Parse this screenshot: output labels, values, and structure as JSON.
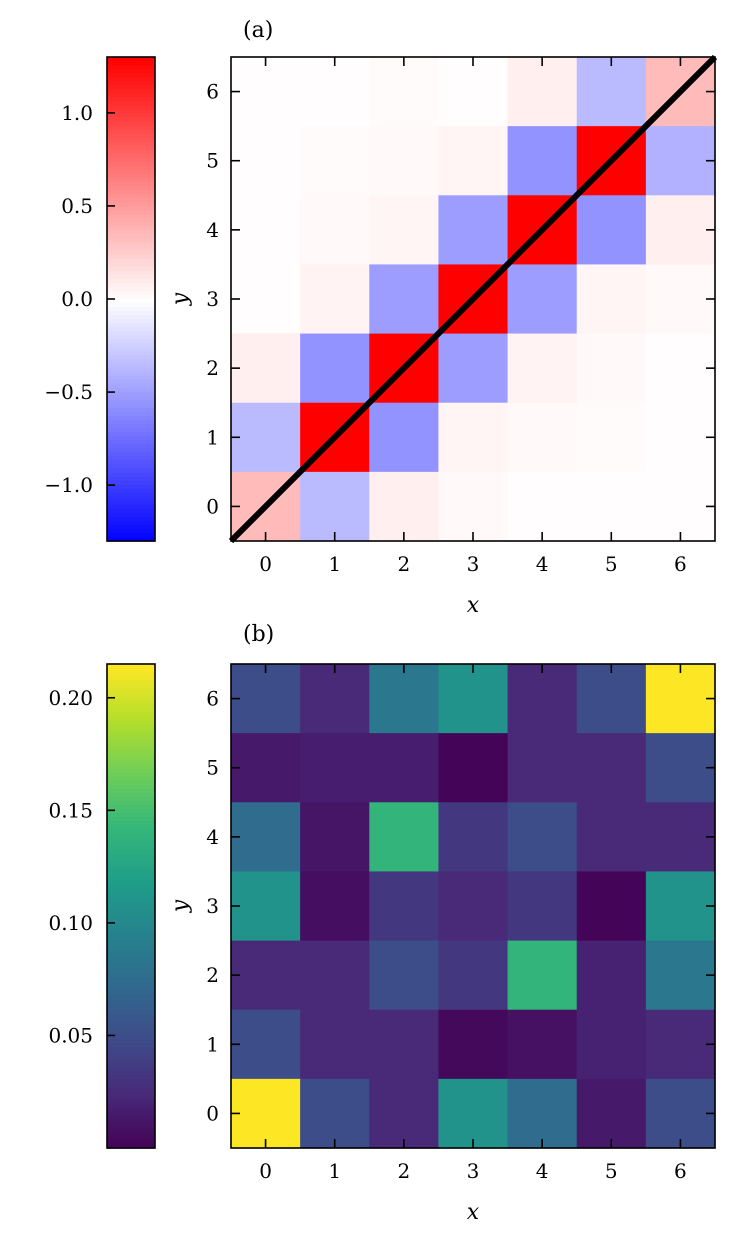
{
  "chart_data": [
    {
      "type": "heatmap",
      "panel_label": "(a)",
      "xlabel": "x",
      "ylabel": "y",
      "x_ticks": [
        "0",
        "1",
        "2",
        "3",
        "4",
        "5",
        "6"
      ],
      "y_ticks": [
        "0",
        "1",
        "2",
        "3",
        "4",
        "5",
        "6"
      ],
      "colormap": "bwr",
      "vmin": -1.3,
      "vmax": 1.3,
      "colorbar_ticks": [
        -1.0,
        -0.5,
        0.0,
        0.5,
        1.0
      ],
      "colorbar_tick_labels": [
        "−1.0",
        "−0.5",
        "0.0",
        "0.5",
        "1.0"
      ],
      "overlay_line": {
        "from": [
          -0.5,
          -0.5
        ],
        "to": [
          6.5,
          6.5
        ],
        "color": "#000000"
      },
      "rows_top_to_bottom_y6_to_y0": [
        [
          0.01,
          0.01,
          0.02,
          0.01,
          0.08,
          -0.35,
          0.35
        ],
        [
          0.01,
          0.02,
          0.03,
          0.05,
          -0.55,
          1.3,
          -0.4
        ],
        [
          0.01,
          0.03,
          0.05,
          -0.5,
          1.3,
          -0.55,
          0.08
        ],
        [
          0.01,
          0.06,
          -0.5,
          1.3,
          -0.5,
          0.05,
          0.03
        ],
        [
          0.08,
          -0.55,
          1.3,
          -0.5,
          0.06,
          0.03,
          0.01
        ],
        [
          -0.35,
          1.3,
          -0.55,
          0.05,
          0.03,
          0.02,
          0.01
        ],
        [
          0.35,
          -0.35,
          0.08,
          0.03,
          0.01,
          0.01,
          0.01
        ]
      ]
    },
    {
      "type": "heatmap",
      "panel_label": "(b)",
      "xlabel": "x",
      "ylabel": "y",
      "x_ticks": [
        "0",
        "1",
        "2",
        "3",
        "4",
        "5",
        "6"
      ],
      "y_ticks": [
        "0",
        "1",
        "2",
        "3",
        "4",
        "5",
        "6"
      ],
      "colormap": "viridis",
      "vmin": 0.0,
      "vmax": 0.215,
      "colorbar_ticks": [
        0.05,
        0.1,
        0.15,
        0.2
      ],
      "colorbar_tick_labels": [
        "0.05",
        "0.10",
        "0.15",
        "0.20"
      ],
      "rows_top_to_bottom_y6_to_y0": [
        [
          0.05,
          0.025,
          0.085,
          0.11,
          0.025,
          0.05,
          0.215
        ],
        [
          0.015,
          0.018,
          0.018,
          0.002,
          0.025,
          0.025,
          0.05
        ],
        [
          0.075,
          0.012,
          0.14,
          0.035,
          0.05,
          0.025,
          0.025
        ],
        [
          0.11,
          0.008,
          0.035,
          0.025,
          0.035,
          0.002,
          0.11
        ],
        [
          0.025,
          0.025,
          0.05,
          0.035,
          0.14,
          0.02,
          0.085
        ],
        [
          0.05,
          0.025,
          0.025,
          0.005,
          0.01,
          0.02,
          0.025
        ],
        [
          0.215,
          0.05,
          0.025,
          0.11,
          0.075,
          0.015,
          0.05
        ]
      ]
    }
  ]
}
